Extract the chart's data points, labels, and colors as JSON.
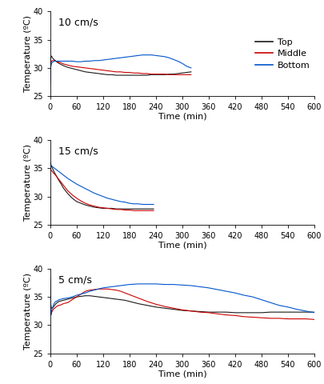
{
  "panels": [
    {
      "label": "10 cm/s",
      "ylim": [
        25,
        40
      ],
      "yticks": [
        25,
        30,
        35,
        40
      ],
      "xlim": [
        0,
        600
      ],
      "xticks": [
        0,
        60,
        120,
        180,
        240,
        300,
        360,
        420,
        480,
        540,
        600
      ],
      "show_legend": true,
      "show_xlabel": true,
      "curves": {
        "Top": {
          "color": "#1a1a1a",
          "t": [
            0,
            1,
            2,
            3,
            5,
            7,
            10,
            13,
            16,
            20,
            25,
            30,
            40,
            50,
            60,
            70,
            80,
            90,
            100,
            110,
            120,
            130,
            140,
            150,
            160,
            170,
            180,
            190,
            200,
            210,
            220,
            230,
            240,
            250,
            260,
            270,
            280,
            290,
            300,
            310,
            320
          ],
          "y": [
            28.5,
            31.8,
            32.0,
            32.1,
            31.8,
            31.6,
            31.4,
            31.2,
            31.0,
            30.8,
            30.6,
            30.4,
            30.1,
            29.9,
            29.7,
            29.5,
            29.3,
            29.2,
            29.1,
            29.0,
            28.9,
            28.8,
            28.8,
            28.7,
            28.7,
            28.7,
            28.7,
            28.7,
            28.7,
            28.7,
            28.7,
            28.8,
            28.8,
            28.8,
            28.8,
            28.9,
            28.9,
            29.0,
            29.1,
            29.2,
            29.3
          ]
        },
        "Middle": {
          "color": "#cc0000",
          "t": [
            0,
            1,
            2,
            3,
            5,
            7,
            10,
            13,
            16,
            20,
            25,
            30,
            40,
            50,
            60,
            70,
            80,
            90,
            100,
            110,
            120,
            130,
            140,
            150,
            160,
            170,
            180,
            190,
            200,
            210,
            220,
            230,
            240,
            250,
            260,
            270,
            280,
            290,
            300,
            310,
            320
          ],
          "y": [
            27.5,
            30.5,
            31.0,
            31.2,
            31.3,
            31.3,
            31.3,
            31.2,
            31.1,
            31.0,
            30.9,
            30.7,
            30.5,
            30.3,
            30.2,
            30.1,
            30.0,
            29.9,
            29.8,
            29.7,
            29.6,
            29.5,
            29.4,
            29.3,
            29.3,
            29.2,
            29.2,
            29.1,
            29.1,
            29.0,
            29.0,
            28.9,
            28.9,
            28.9,
            28.9,
            28.8,
            28.8,
            28.8,
            28.8,
            28.8,
            28.8
          ]
        },
        "Bottom": {
          "color": "#0055cc",
          "t": [
            0,
            1,
            2,
            3,
            5,
            7,
            10,
            13,
            16,
            20,
            25,
            30,
            40,
            50,
            60,
            70,
            80,
            90,
            100,
            110,
            120,
            130,
            140,
            150,
            160,
            170,
            180,
            190,
            200,
            210,
            220,
            230,
            240,
            250,
            260,
            270,
            280,
            290,
            300,
            310,
            320
          ],
          "y": [
            27.0,
            30.0,
            30.5,
            30.8,
            31.0,
            31.1,
            31.2,
            31.2,
            31.2,
            31.2,
            31.2,
            31.2,
            31.2,
            31.2,
            31.1,
            31.1,
            31.2,
            31.2,
            31.3,
            31.3,
            31.4,
            31.5,
            31.6,
            31.7,
            31.8,
            31.9,
            32.0,
            32.1,
            32.2,
            32.3,
            32.3,
            32.3,
            32.2,
            32.1,
            32.0,
            31.8,
            31.5,
            31.2,
            30.8,
            30.3,
            30.0
          ]
        }
      }
    },
    {
      "label": "15 cm/s",
      "ylim": [
        25,
        40
      ],
      "yticks": [
        25,
        30,
        35,
        40
      ],
      "xlim": [
        0,
        600
      ],
      "xticks": [
        0,
        60,
        120,
        180,
        240,
        300,
        360,
        420,
        480,
        540,
        600
      ],
      "show_legend": false,
      "show_xlabel": true,
      "curves": {
        "Top": {
          "color": "#1a1a1a",
          "t": [
            0,
            2,
            5,
            8,
            10,
            15,
            20,
            25,
            30,
            35,
            40,
            50,
            60,
            70,
            80,
            90,
            100,
            110,
            120,
            130,
            140,
            150,
            160,
            170,
            180,
            190,
            200,
            210,
            220,
            230,
            235
          ],
          "y": [
            36.2,
            35.5,
            35.0,
            34.5,
            34.2,
            33.5,
            32.8,
            32.2,
            31.5,
            31.0,
            30.5,
            29.7,
            29.1,
            28.8,
            28.5,
            28.3,
            28.1,
            28.0,
            27.9,
            27.9,
            27.9,
            27.8,
            27.8,
            27.8,
            27.8,
            27.8,
            27.8,
            27.8,
            27.8,
            27.8,
            27.8
          ]
        },
        "Middle": {
          "color": "#cc0000",
          "t": [
            0,
            2,
            5,
            8,
            10,
            15,
            20,
            25,
            30,
            35,
            40,
            50,
            60,
            70,
            80,
            90,
            100,
            110,
            120,
            130,
            140,
            150,
            160,
            170,
            180,
            190,
            200,
            210,
            220,
            230,
            235
          ],
          "y": [
            35.0,
            34.7,
            34.4,
            34.1,
            34.0,
            33.5,
            33.0,
            32.5,
            32.0,
            31.5,
            31.0,
            30.3,
            29.7,
            29.2,
            28.8,
            28.5,
            28.3,
            28.1,
            28.0,
            27.9,
            27.8,
            27.7,
            27.7,
            27.6,
            27.6,
            27.5,
            27.5,
            27.5,
            27.5,
            27.5,
            27.5
          ]
        },
        "Bottom": {
          "color": "#0055cc",
          "t": [
            0,
            2,
            5,
            8,
            10,
            15,
            20,
            25,
            30,
            35,
            40,
            50,
            60,
            70,
            80,
            90,
            100,
            110,
            120,
            130,
            140,
            150,
            160,
            170,
            180,
            190,
            200,
            210,
            220,
            230,
            235
          ],
          "y": [
            35.8,
            35.5,
            35.3,
            35.1,
            35.0,
            34.7,
            34.4,
            34.1,
            33.8,
            33.5,
            33.2,
            32.7,
            32.2,
            31.8,
            31.4,
            31.0,
            30.6,
            30.3,
            30.0,
            29.7,
            29.5,
            29.3,
            29.1,
            29.0,
            28.8,
            28.7,
            28.7,
            28.6,
            28.6,
            28.6,
            28.6
          ]
        }
      }
    },
    {
      "label": "5 cm/s",
      "ylim": [
        25,
        40
      ],
      "yticks": [
        25,
        30,
        35,
        40
      ],
      "xlim": [
        0,
        600
      ],
      "xticks": [
        0,
        60,
        120,
        180,
        240,
        300,
        360,
        420,
        480,
        540,
        600
      ],
      "show_legend": false,
      "show_xlabel": true,
      "curves": {
        "Top": {
          "color": "#1a1a1a",
          "t": [
            0,
            1,
            2,
            3,
            5,
            7,
            10,
            13,
            16,
            20,
            25,
            30,
            40,
            50,
            60,
            70,
            80,
            90,
            100,
            110,
            120,
            130,
            140,
            150,
            160,
            170,
            180,
            200,
            220,
            240,
            260,
            280,
            300,
            320,
            340,
            360,
            380,
            400,
            420,
            440,
            460,
            480,
            500,
            520,
            540,
            560,
            580,
            600
          ],
          "y": [
            38.5,
            34.0,
            33.2,
            33.0,
            33.0,
            33.2,
            33.5,
            33.8,
            34.0,
            34.2,
            34.3,
            34.4,
            34.6,
            34.8,
            35.0,
            35.1,
            35.2,
            35.2,
            35.1,
            35.0,
            34.9,
            34.8,
            34.7,
            34.6,
            34.5,
            34.4,
            34.2,
            33.8,
            33.5,
            33.2,
            33.0,
            32.8,
            32.6,
            32.5,
            32.4,
            32.3,
            32.3,
            32.3,
            32.2,
            32.2,
            32.2,
            32.2,
            32.3,
            32.3,
            32.3,
            32.3,
            32.3,
            32.3
          ]
        },
        "Middle": {
          "color": "#cc0000",
          "t": [
            0,
            1,
            2,
            3,
            5,
            7,
            10,
            13,
            16,
            20,
            25,
            30,
            40,
            50,
            60,
            70,
            80,
            90,
            100,
            110,
            120,
            130,
            140,
            150,
            160,
            170,
            180,
            200,
            220,
            240,
            260,
            280,
            300,
            320,
            340,
            360,
            380,
            400,
            420,
            440,
            460,
            480,
            500,
            520,
            540,
            560,
            580,
            600
          ],
          "y": [
            38.0,
            32.2,
            32.0,
            32.2,
            32.5,
            32.8,
            33.0,
            33.2,
            33.4,
            33.5,
            33.6,
            33.8,
            34.0,
            34.5,
            35.0,
            35.5,
            36.0,
            36.2,
            36.3,
            36.4,
            36.4,
            36.4,
            36.3,
            36.2,
            36.0,
            35.7,
            35.4,
            34.8,
            34.2,
            33.7,
            33.3,
            33.0,
            32.7,
            32.5,
            32.3,
            32.2,
            32.0,
            31.8,
            31.7,
            31.5,
            31.4,
            31.3,
            31.2,
            31.2,
            31.1,
            31.1,
            31.1,
            31.0
          ]
        },
        "Bottom": {
          "color": "#0055cc",
          "t": [
            0,
            1,
            2,
            3,
            5,
            7,
            10,
            13,
            16,
            20,
            25,
            30,
            40,
            50,
            60,
            70,
            80,
            90,
            100,
            110,
            120,
            130,
            140,
            150,
            160,
            170,
            180,
            200,
            220,
            240,
            260,
            280,
            300,
            320,
            340,
            360,
            380,
            400,
            420,
            440,
            460,
            480,
            500,
            520,
            540,
            560,
            580,
            600
          ],
          "y": [
            37.5,
            32.0,
            31.8,
            32.5,
            33.0,
            33.5,
            34.0,
            34.2,
            34.3,
            34.5,
            34.6,
            34.7,
            34.8,
            35.0,
            35.3,
            35.5,
            35.7,
            36.0,
            36.2,
            36.4,
            36.6,
            36.7,
            36.8,
            36.9,
            37.0,
            37.1,
            37.2,
            37.3,
            37.3,
            37.3,
            37.2,
            37.2,
            37.1,
            37.0,
            36.8,
            36.6,
            36.3,
            36.0,
            35.7,
            35.3,
            35.0,
            34.5,
            34.0,
            33.5,
            33.2,
            32.8,
            32.5,
            32.2
          ]
        }
      }
    }
  ],
  "legend_labels": [
    "Top",
    "Middle",
    "Bottom"
  ],
  "legend_colors": [
    "#1a1a1a",
    "#cc0000",
    "#0055cc"
  ],
  "ylabel": "Temperature (ºC)",
  "xlabel": "Time (min)",
  "linewidth": 0.8,
  "tick_fontsize": 7,
  "label_fontsize": 8,
  "panel_label_fontsize": 9
}
